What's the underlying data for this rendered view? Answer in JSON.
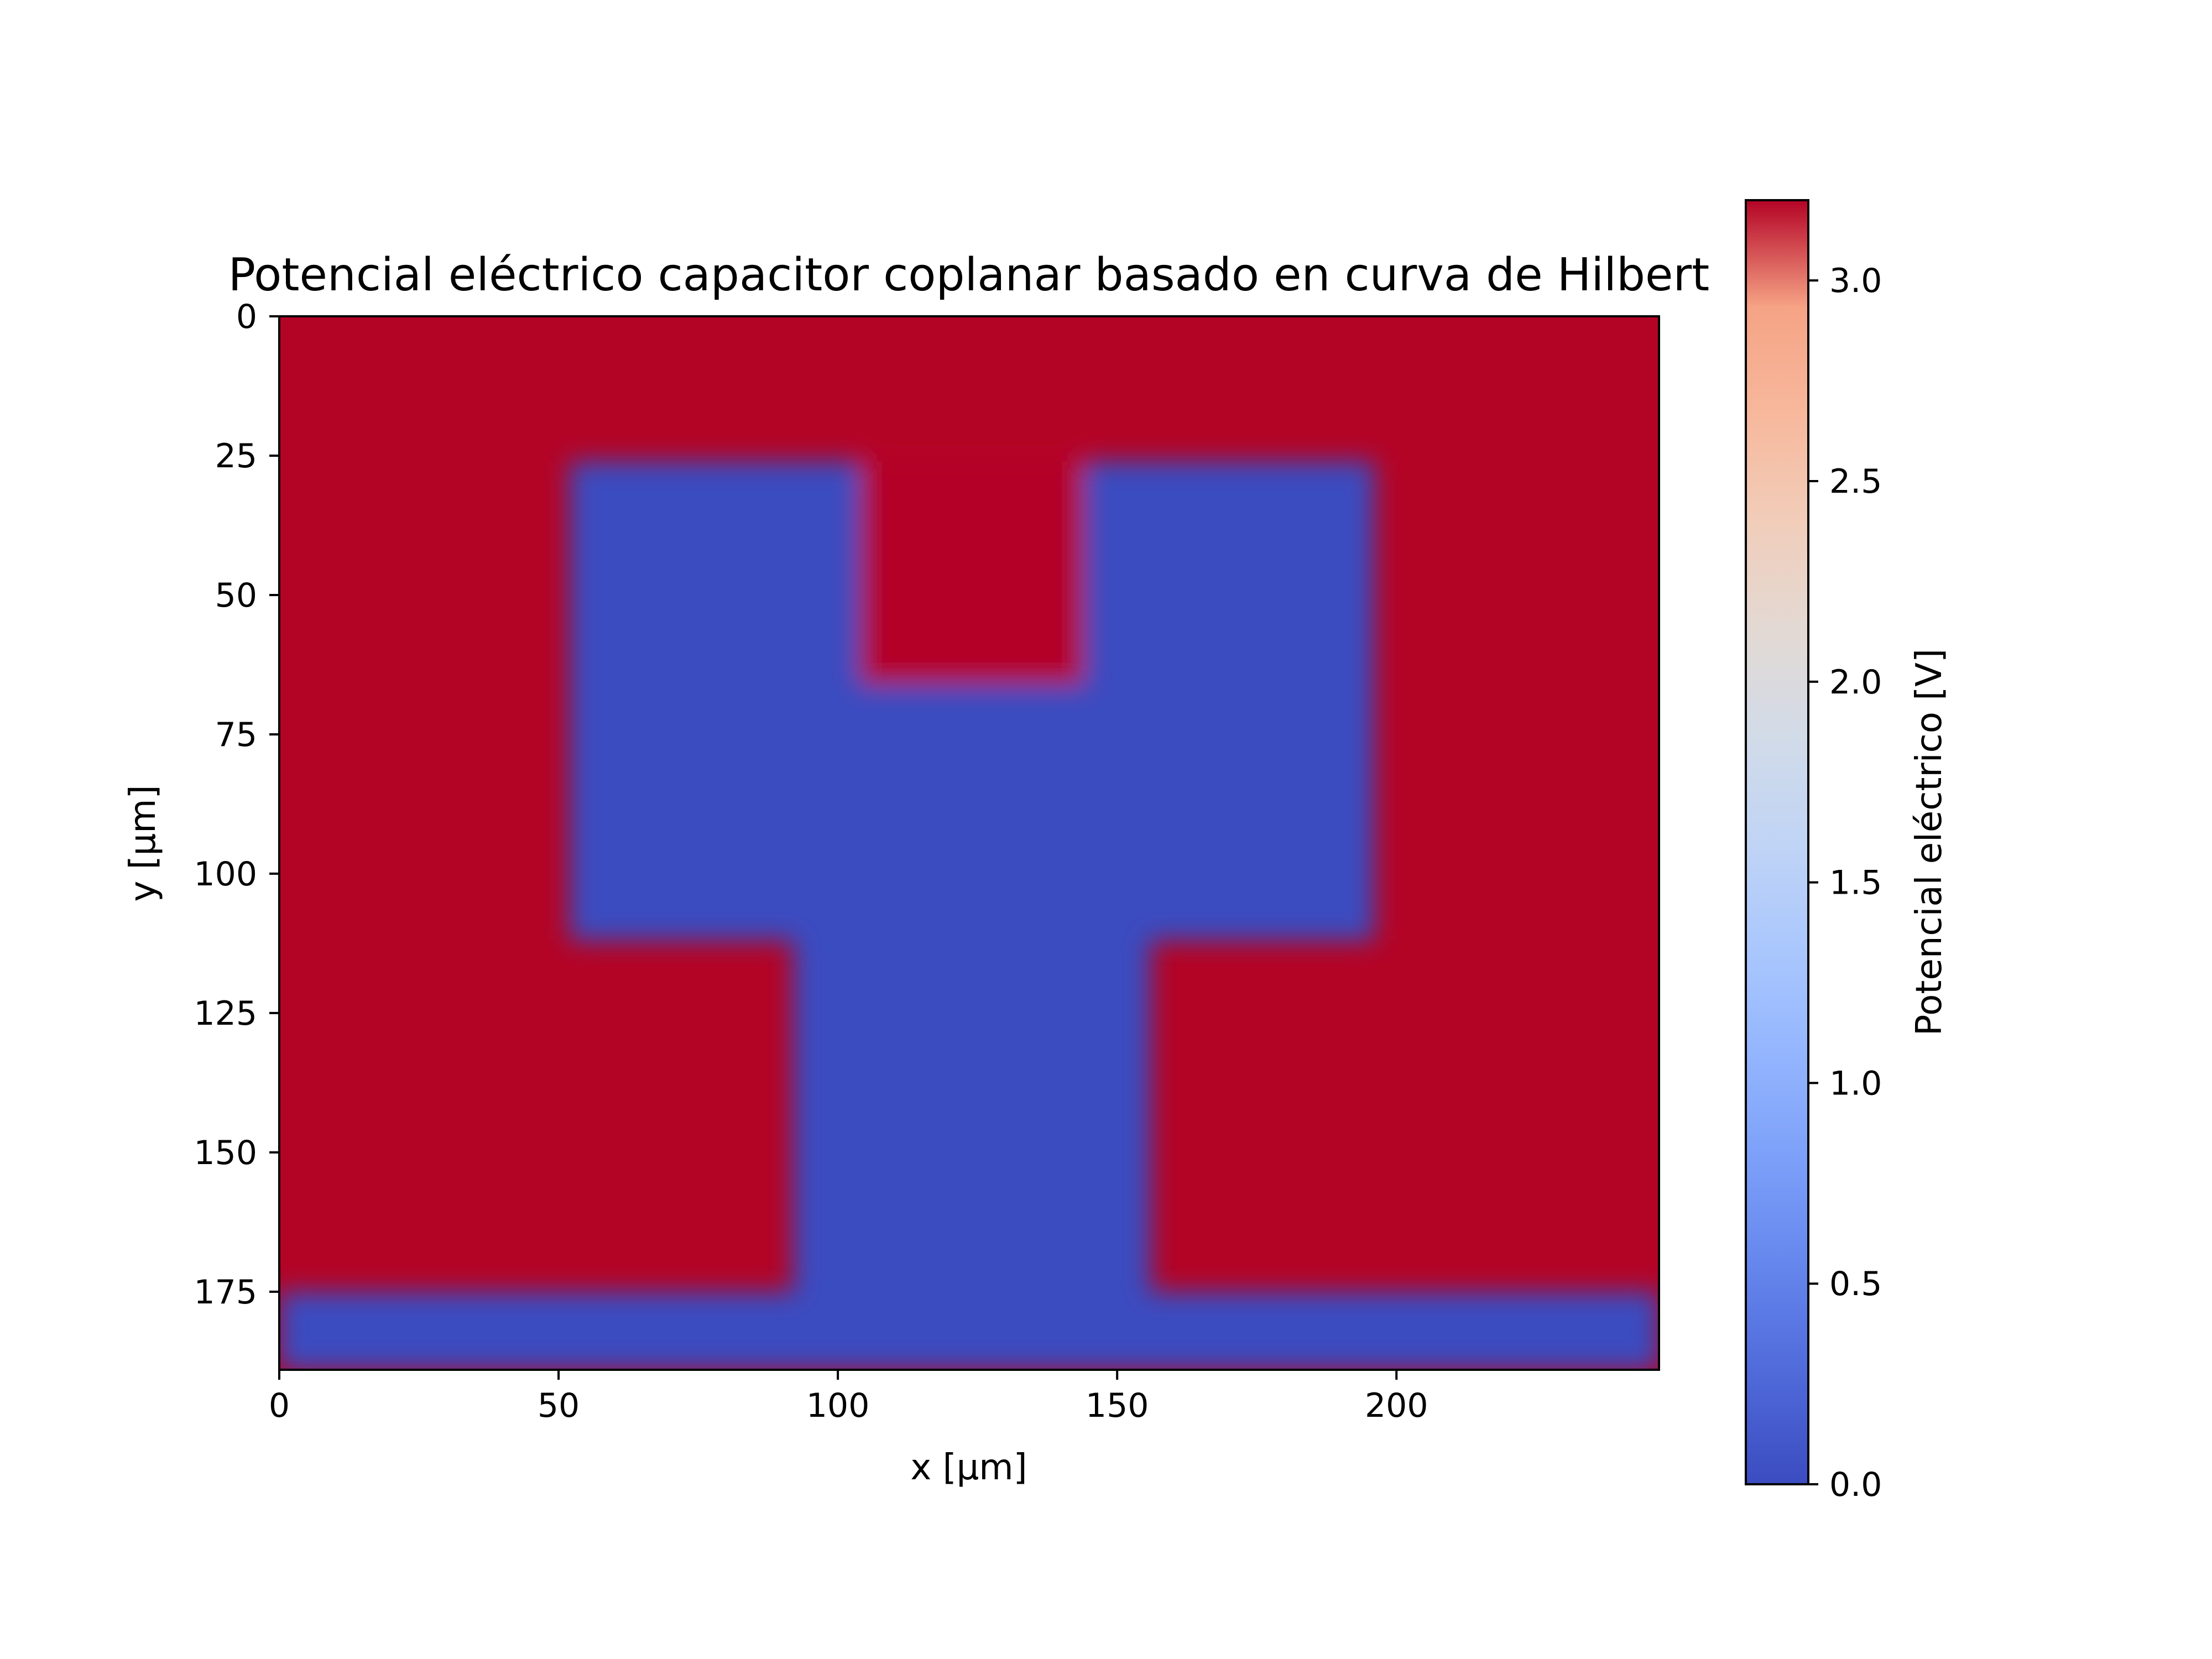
{
  "chart_data": {
    "type": "heatmap",
    "title": "Potencial eléctrico capacitor coplanar basado en curva de Hilbert",
    "xlabel": "x [µm]",
    "ylabel": "y [µm]",
    "xlim": [
      0,
      247
    ],
    "ylim": [
      189,
      0
    ],
    "x_ticks": [
      "0",
      "50",
      "100",
      "150",
      "200"
    ],
    "y_ticks": [
      "0",
      "25",
      "50",
      "75",
      "100",
      "125",
      "150",
      "175"
    ],
    "colorbar": {
      "label": "Potencial eléctrico [V]",
      "range": [
        0.0,
        3.2
      ],
      "ticks": [
        "0.0",
        "0.5",
        "1.0",
        "1.5",
        "2.0",
        "2.5",
        "3.0"
      ],
      "colormap": "coolwarm",
      "low_color": "#3b4cc0",
      "high_color": "#b40426"
    },
    "grid": false,
    "regions": {
      "high_value_V": 3.2,
      "low_value_V": 0.0,
      "low_potential_electrode_rectangles_um": [
        {
          "x": [
            52,
            196
          ],
          "y": [
            26,
            112
          ]
        },
        {
          "x": [
            92,
            156
          ],
          "y": [
            78,
            189
          ]
        },
        {
          "x": [
            0,
            247
          ],
          "y": [
            175,
            189
          ]
        }
      ],
      "high_potential_notch_rectangles_um": [
        {
          "x": [
            104,
            144
          ],
          "y": [
            26,
            66
          ]
        }
      ],
      "transition_width_um": 12
    }
  }
}
